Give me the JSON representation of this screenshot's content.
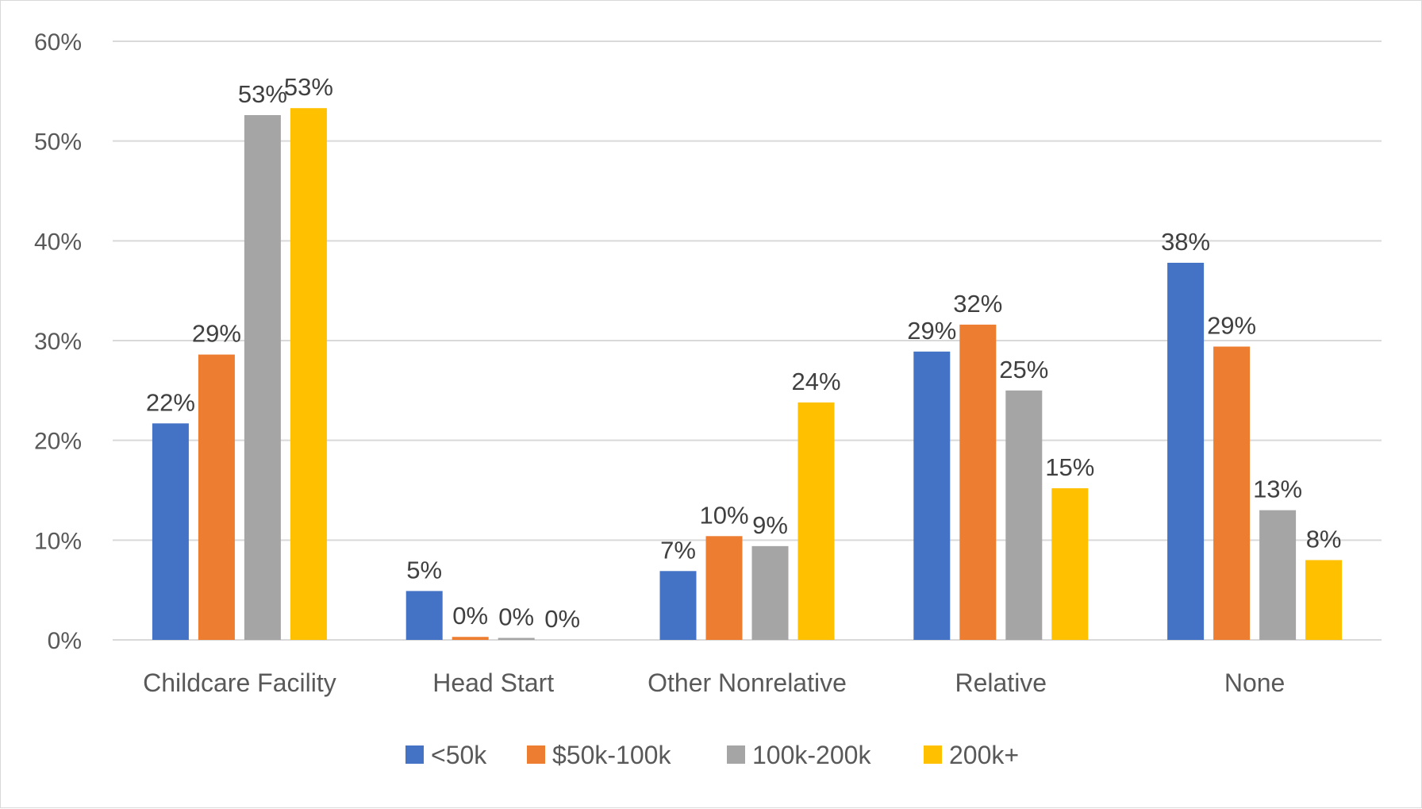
{
  "chart_data": {
    "type": "bar",
    "title": "",
    "xlabel": "",
    "ylabel": "",
    "ylim": [
      0,
      0.6
    ],
    "yticks": [
      {
        "value": 0,
        "label": "0%"
      },
      {
        "value": 0.1,
        "label": "10%"
      },
      {
        "value": 0.2,
        "label": "20%"
      },
      {
        "value": 0.3,
        "label": "30%"
      },
      {
        "value": 0.4,
        "label": "40%"
      },
      {
        "value": 0.5,
        "label": "50%"
      },
      {
        "value": 0.6,
        "label": "60%"
      }
    ],
    "grid": true,
    "legend_position": "bottom",
    "categories": [
      "Childcare Facility",
      "Head Start",
      "Other Nonrelative",
      "Relative",
      "None"
    ],
    "series": [
      {
        "name": "<50k",
        "color": "#4472c4",
        "values": [
          0.217,
          0.049,
          0.069,
          0.289,
          0.378
        ],
        "labels": [
          "22%",
          "5%",
          "7%",
          "29%",
          "38%"
        ]
      },
      {
        "name": "$50k-100k",
        "color": "#ed7d31",
        "values": [
          0.286,
          0.003,
          0.104,
          0.316,
          0.294
        ],
        "labels": [
          "29%",
          "0%",
          "10%",
          "32%",
          "29%"
        ]
      },
      {
        "name": "100k-200k",
        "color": "#a5a5a5",
        "values": [
          0.526,
          0.002,
          0.094,
          0.25,
          0.13
        ],
        "labels": [
          "53%",
          "0%",
          "9%",
          "25%",
          "13%"
        ]
      },
      {
        "name": "200k+",
        "color": "#ffc000",
        "values": [
          0.533,
          0.0,
          0.238,
          0.152,
          0.08
        ],
        "labels": [
          "53%",
          "0%",
          "24%",
          "15%",
          "8%"
        ]
      }
    ]
  }
}
